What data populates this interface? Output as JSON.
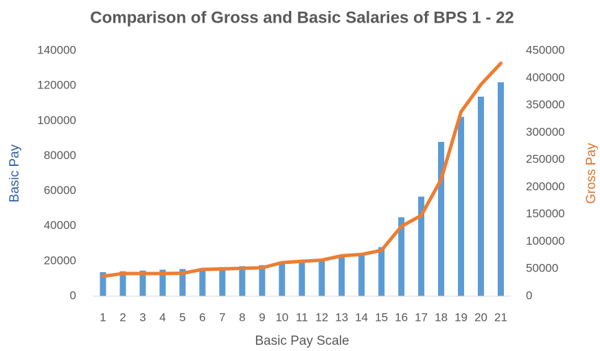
{
  "chart_data": {
    "type": "bar-line",
    "title": "Comparison of Gross and Basic Salaries of BPS 1 - 22",
    "x_label": "Basic Pay Scale",
    "y_label": "Basic Pay",
    "y2_label": "Gross Pay",
    "categories": [
      "1",
      "2",
      "3",
      "4",
      "5",
      "6",
      "7",
      "8",
      "9",
      "10",
      "11",
      "12",
      "13",
      "14",
      "15",
      "16",
      "17",
      "18",
      "19",
      "20",
      "21"
    ],
    "series": [
      {
        "name": "Basic Pay",
        "type": "bar",
        "color": "#5b9bd5",
        "values": [
          13700,
          14200,
          14600,
          15100,
          15500,
          16100,
          16600,
          17100,
          17700,
          19000,
          20100,
          21000,
          22700,
          24000,
          28000,
          45000,
          56800,
          88000,
          102300,
          113800,
          122000
        ]
      },
      {
        "name": "Gross Pay",
        "type": "line",
        "axis": "y2",
        "color": "#ed7d31",
        "values": [
          36500,
          41500,
          41500,
          41500,
          42000,
          49000,
          50000,
          51000,
          52000,
          61500,
          64000,
          66000,
          74000,
          76500,
          84000,
          128000,
          148000,
          214000,
          338000,
          388000,
          427000
        ]
      }
    ],
    "ylim": [
      0,
      140000
    ],
    "yticks": [
      0,
      20000,
      40000,
      60000,
      80000,
      100000,
      120000,
      140000
    ],
    "y2lim": [
      0,
      450000
    ],
    "y2ticks": [
      0,
      50000,
      100000,
      150000,
      200000,
      250000,
      300000,
      350000,
      400000,
      450000
    ],
    "y_label_color": "#2f5fa5",
    "y2_label_color": "#e0712b",
    "grid": false
  }
}
